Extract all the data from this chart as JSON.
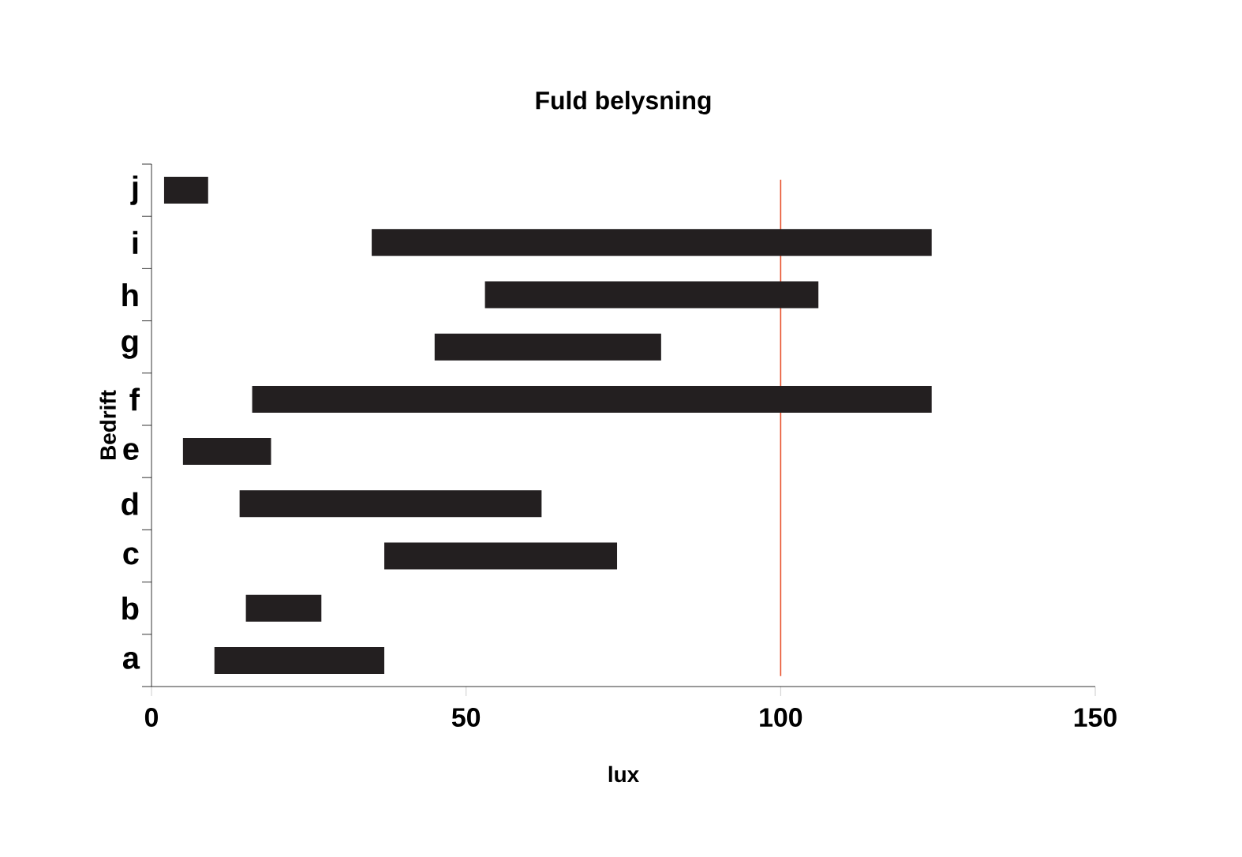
{
  "chart_data": {
    "type": "bar",
    "orientation": "horizontal",
    "title": "Fuld belysning",
    "xlabel": "lux",
    "ylabel": "Bedrift",
    "categories": [
      "j",
      "i",
      "h",
      "g",
      "f",
      "e",
      "d",
      "c",
      "b",
      "a"
    ],
    "base": [
      2,
      35,
      53,
      45,
      16,
      5,
      14,
      37,
      15,
      10
    ],
    "values": [
      7,
      89,
      53,
      36,
      108,
      14,
      48,
      37,
      12,
      27
    ],
    "color": "#231f20",
    "xlim": [
      0,
      150
    ],
    "xticks": [
      0,
      50,
      100,
      150
    ],
    "ref_lines": [
      {
        "axis": "x",
        "value": 100,
        "color": "#e8502a"
      }
    ]
  }
}
